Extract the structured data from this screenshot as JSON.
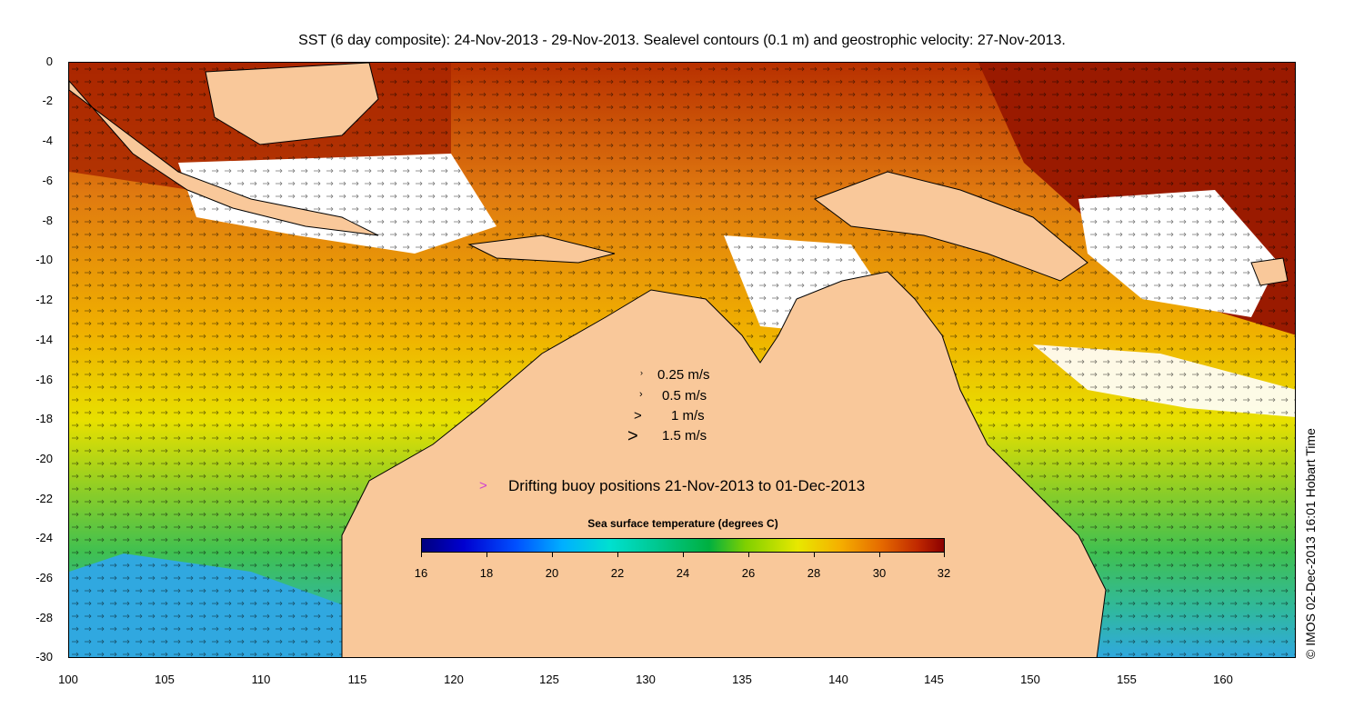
{
  "title": "SST (6 day composite): 24-Nov-2013 - 29-Nov-2013. Sealevel contours (0.1 m) and geostrophic velocity: 27-Nov-2013.",
  "y_axis": {
    "ticks": [
      "0",
      "-2",
      "-4",
      "-6",
      "-8",
      "-10",
      "-12",
      "-14",
      "-16",
      "-18",
      "-20",
      "-22",
      "-24",
      "-26",
      "-28",
      "-30"
    ]
  },
  "x_axis": {
    "ticks": [
      "100",
      "105",
      "110",
      "115",
      "120",
      "125",
      "130",
      "135",
      "140",
      "145",
      "150",
      "155",
      "160"
    ]
  },
  "velocity_legend": [
    {
      "glyph": "›",
      "label": "0.25 m/s"
    },
    {
      "glyph": "›",
      "label": "0.5 m/s"
    },
    {
      "glyph": ">",
      "label": "1 m/s"
    },
    {
      "glyph": ">",
      "label": "1.5 m/s"
    }
  ],
  "buoy_legend": {
    "glyph": ">",
    "label": "Drifting buoy positions 21-Nov-2013 to 01-Dec-2013",
    "color": "#d040d0"
  },
  "colorbar": {
    "title": "Sea surface temperature (degrees C)",
    "ticks": [
      "16",
      "18",
      "20",
      "22",
      "24",
      "26",
      "28",
      "30",
      "32"
    ]
  },
  "watermark": "© IMOS 02-Dec-2013 16:01 Hobart Time",
  "colors": {
    "land": "#f9c89a",
    "warm": "#c03000",
    "hot": "#9a1a00",
    "mid": "#e07a10",
    "yellow": "#e8d800",
    "green": "#40c040",
    "cyan": "#30c0d0",
    "cloud": "#ffffff"
  }
}
